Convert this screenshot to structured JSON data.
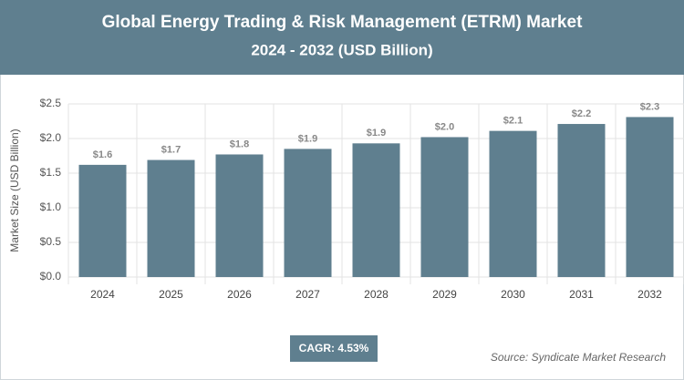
{
  "chart_data": {
    "type": "bar",
    "title": "Global Energy Trading & Risk Management (ETRM) Market",
    "subtitle": "2024 - 2032 (USD Billion)",
    "y_label": "Market Size (USD Billion)",
    "categories": [
      "2024",
      "2025",
      "2026",
      "2027",
      "2028",
      "2029",
      "2030",
      "2031",
      "2032"
    ],
    "values": [
      1.62,
      1.69,
      1.77,
      1.85,
      1.93,
      2.02,
      2.11,
      2.21,
      2.31
    ],
    "value_labels": [
      "$1.6",
      "$1.7",
      "$1.8",
      "$1.9",
      "$1.9",
      "$2.0",
      "$2.1",
      "$2.2",
      "$2.3"
    ],
    "color": "#5f7f8f",
    "ylim": [
      0,
      2.5
    ],
    "yticks": [
      {
        "value": 0,
        "label": "$0.0"
      },
      {
        "value": 0.5,
        "label": "$0.5"
      },
      {
        "value": 1,
        "label": "$1.0"
      },
      {
        "value": 1.5,
        "label": "$1.5"
      },
      {
        "value": 2,
        "label": "$2.0"
      },
      {
        "value": 2.5,
        "label": "$2.5"
      }
    ],
    "grid": true,
    "annotation": "CAGR: 4.53%",
    "source": "Source: Syndicate Market Research"
  }
}
